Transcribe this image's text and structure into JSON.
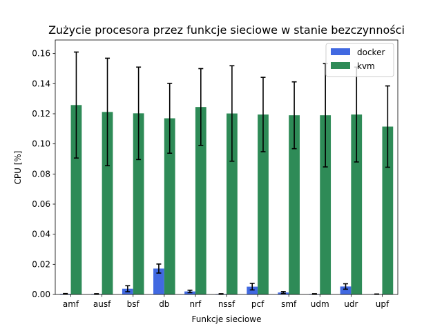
{
  "chart_data": {
    "type": "bar",
    "title": "Zużycie procesora przez funkcje sieciowe w stanie bezczynności",
    "xlabel": "Funkcje sieciowe",
    "ylabel": "CPU [%]",
    "ylim": [
      0,
      0.169
    ],
    "yticks": [
      "0.00",
      "0.02",
      "0.04",
      "0.06",
      "0.08",
      "0.10",
      "0.12",
      "0.14",
      "0.16"
    ],
    "ytick_values": [
      0,
      0.02,
      0.04,
      0.06,
      0.08,
      0.1,
      0.12,
      0.14,
      0.16
    ],
    "categories": [
      "amf",
      "ausf",
      "bsf",
      "db",
      "nrf",
      "nssf",
      "pcf",
      "smf",
      "udm",
      "udr",
      "upf"
    ],
    "legend_position": "top-right",
    "grid": false,
    "series": [
      {
        "name": "docker",
        "color": "#4169e1",
        "values": [
          0.0004,
          0.0003,
          0.0038,
          0.0172,
          0.002,
          0.0003,
          0.0052,
          0.0013,
          0.0003,
          0.0053,
          0.0002
        ],
        "errors": [
          0.0002,
          0.0002,
          0.002,
          0.003,
          0.0008,
          0.0002,
          0.0022,
          0.0006,
          0.0002,
          0.0018,
          0.0001
        ]
      },
      {
        "name": "kvm",
        "color": "#2e8b57",
        "values": [
          0.1258,
          0.1212,
          0.1203,
          0.117,
          0.1245,
          0.1202,
          0.1195,
          0.119,
          0.119,
          0.1195,
          0.1115
        ],
        "errors": [
          0.0352,
          0.0357,
          0.0307,
          0.0232,
          0.0255,
          0.0317,
          0.0247,
          0.0222,
          0.0343,
          0.0315,
          0.027
        ]
      }
    ]
  }
}
